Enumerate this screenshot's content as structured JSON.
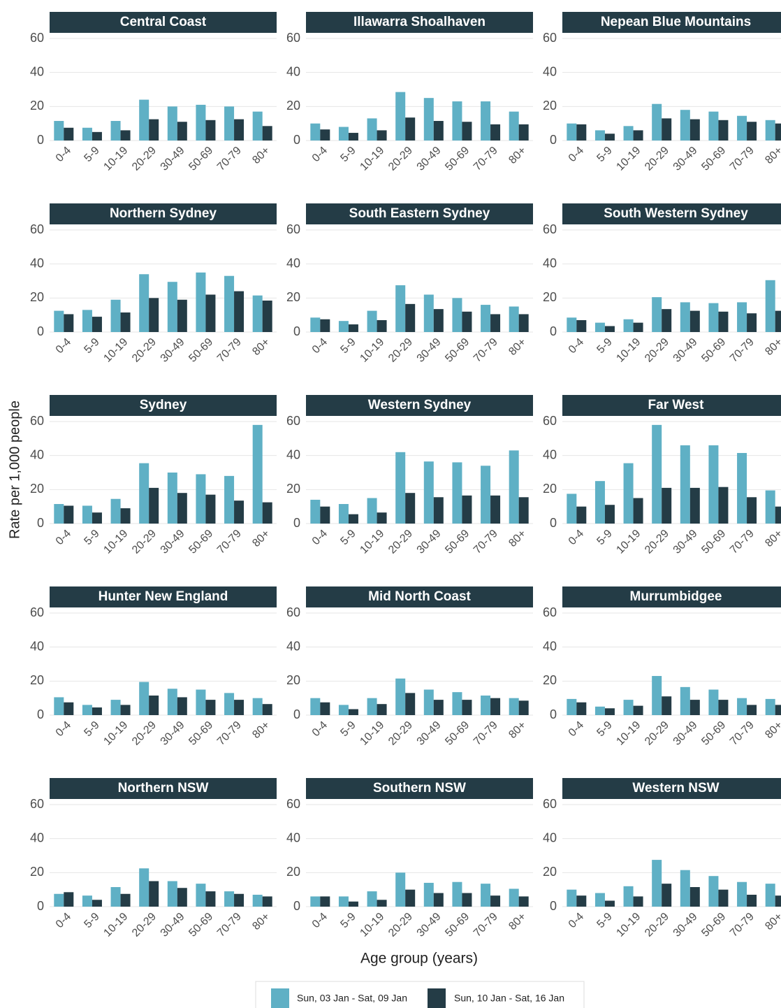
{
  "chart_data": {
    "type": "bar",
    "y_label": "Rate per 1,000 people",
    "x_label": "Age group (years)",
    "categories": [
      "0-4",
      "5-9",
      "10-19",
      "20-29",
      "30-49",
      "50-69",
      "70-79",
      "80+"
    ],
    "ylim": [
      0,
      60
    ],
    "yticks": [
      0,
      20,
      40,
      60
    ],
    "grid": true,
    "series": [
      {
        "name": "Sun, 03 Jan - Sat, 09 Jan",
        "color": "#5fb0c5"
      },
      {
        "name": "Sun, 10 Jan - Sat, 16 Jan",
        "color": "#243c46"
      }
    ],
    "panels": [
      {
        "title": "Central Coast",
        "values": [
          [
            11.5,
            7.5,
            11.5,
            24,
            20,
            21,
            20,
            17
          ],
          [
            7.5,
            5,
            6,
            12.5,
            11,
            12,
            12.5,
            8.5
          ]
        ]
      },
      {
        "title": "Illawarra Shoalhaven",
        "values": [
          [
            10,
            8,
            13,
            28.5,
            25,
            23,
            23,
            17
          ],
          [
            6.5,
            4.5,
            6,
            13.5,
            11.5,
            11,
            9.5,
            9.5
          ]
        ]
      },
      {
        "title": "Nepean Blue Mountains",
        "values": [
          [
            10,
            6,
            8.5,
            21.5,
            18,
            17,
            14.5,
            12
          ],
          [
            9.5,
            4,
            6,
            13,
            12.5,
            12,
            11,
            10
          ]
        ]
      },
      {
        "title": "Northern Sydney",
        "values": [
          [
            12.5,
            13,
            19,
            34,
            29.5,
            35,
            33,
            21.5
          ],
          [
            10.5,
            9,
            11.5,
            20,
            19,
            22,
            24,
            18.5
          ]
        ]
      },
      {
        "title": "South Eastern Sydney",
        "values": [
          [
            8.5,
            6.5,
            12.5,
            27.5,
            22,
            20,
            16,
            15
          ],
          [
            7.5,
            4.5,
            7,
            16.5,
            13.5,
            12,
            10.5,
            10.5
          ]
        ]
      },
      {
        "title": "South Western Sydney",
        "values": [
          [
            8.5,
            5.5,
            7.5,
            20.5,
            17.5,
            17,
            17.5,
            30.5
          ],
          [
            7,
            3.5,
            5.5,
            13.5,
            12.5,
            12,
            11,
            12.5
          ]
        ]
      },
      {
        "title": "Sydney",
        "values": [
          [
            11.5,
            10.5,
            14.5,
            35.5,
            30,
            29,
            28,
            58
          ],
          [
            10.5,
            6.5,
            9,
            21,
            18,
            17,
            13.5,
            12.5
          ]
        ]
      },
      {
        "title": "Western Sydney",
        "values": [
          [
            14,
            11.5,
            15,
            42,
            36.5,
            36,
            34,
            43
          ],
          [
            10,
            5.5,
            6.5,
            18,
            15.5,
            16.5,
            16.5,
            15.5
          ]
        ]
      },
      {
        "title": "Far West",
        "values": [
          [
            17.5,
            25,
            35.5,
            58,
            46,
            46,
            41.5,
            19.5
          ],
          [
            10,
            11,
            15,
            21,
            21,
            21.5,
            15.5,
            10
          ]
        ]
      },
      {
        "title": "Hunter New England",
        "values": [
          [
            10.5,
            6,
            9,
            19.5,
            15.5,
            15,
            13,
            10
          ],
          [
            7.5,
            4.5,
            6,
            11.5,
            10.5,
            9,
            9,
            6.5
          ]
        ]
      },
      {
        "title": "Mid North Coast",
        "values": [
          [
            10,
            6,
            10,
            21.5,
            15,
            13.5,
            11.5,
            10
          ],
          [
            7.5,
            3.5,
            6.5,
            13,
            9,
            9,
            10,
            8.5
          ]
        ]
      },
      {
        "title": "Murrumbidgee",
        "values": [
          [
            9.5,
            5,
            9,
            23,
            16.5,
            15,
            10,
            9.5
          ],
          [
            7.5,
            4,
            5.5,
            11,
            9,
            9,
            6,
            6
          ]
        ]
      },
      {
        "title": "Northern NSW",
        "values": [
          [
            7.5,
            6.5,
            11.5,
            22.5,
            15,
            13.5,
            9,
            7
          ],
          [
            8.5,
            4,
            7.5,
            15,
            11,
            9,
            7.5,
            6
          ]
        ]
      },
      {
        "title": "Southern NSW",
        "values": [
          [
            6,
            6,
            9,
            20,
            14,
            14.5,
            13.5,
            10.5
          ],
          [
            6,
            3,
            4,
            10,
            8,
            8,
            6.5,
            6
          ]
        ]
      },
      {
        "title": "Western NSW",
        "values": [
          [
            10,
            8,
            12,
            27.5,
            21.5,
            18,
            14.5,
            13.5
          ],
          [
            6.5,
            3.5,
            6,
            13.5,
            11.5,
            10,
            7,
            6.5
          ]
        ]
      }
    ]
  }
}
